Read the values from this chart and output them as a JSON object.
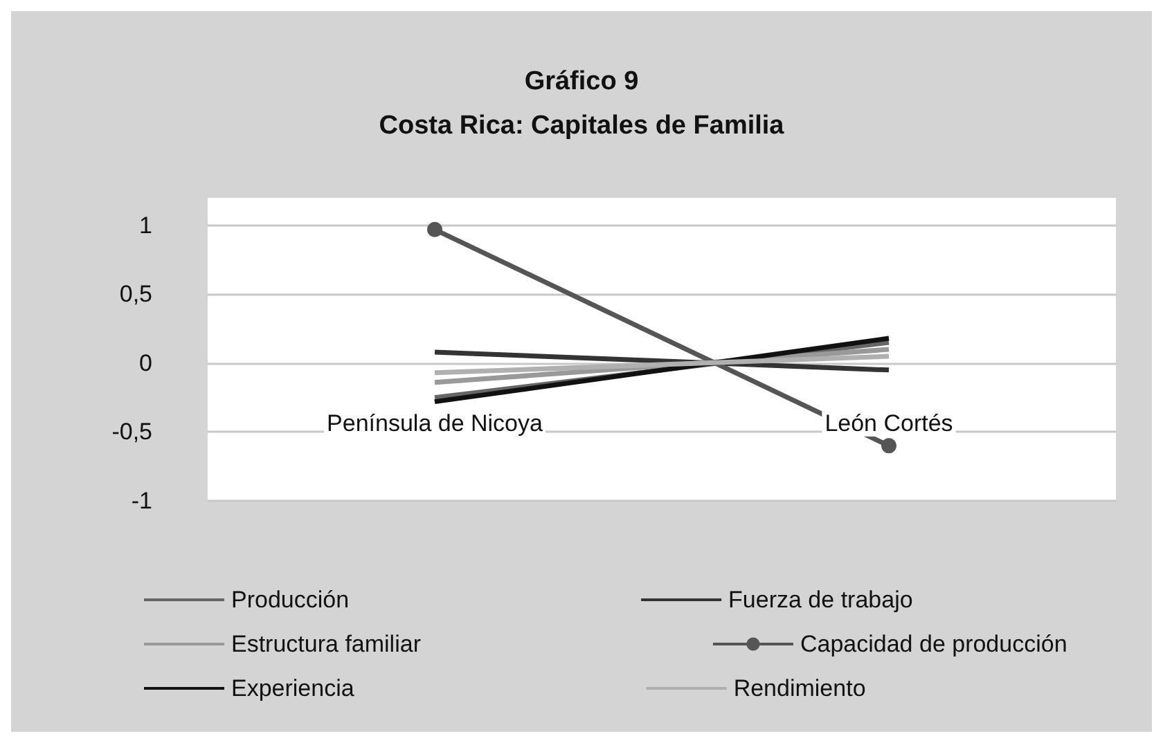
{
  "chart_data": {
    "type": "line",
    "title": "Gráfico 9\nCosta Rica: Capitales de Familia",
    "categories": [
      "Península de Nicoya",
      "León Cortés"
    ],
    "series": [
      {
        "name": "Producción",
        "color": "#666666",
        "values": [
          -0.25,
          0.15
        ]
      },
      {
        "name": "Fuerza de trabajo",
        "color": "#333333",
        "values": [
          0.08,
          -0.05
        ]
      },
      {
        "name": "Estructura familiar",
        "color": "#999999",
        "values": [
          -0.14,
          0.1
        ]
      },
      {
        "name": "Capacidad de producción",
        "color": "#555555",
        "values": [
          0.97,
          -0.6
        ],
        "marker": "circle"
      },
      {
        "name": "Experiencia",
        "color": "#111111",
        "values": [
          -0.28,
          0.18
        ]
      },
      {
        "name": "Rendimiento",
        "color": "#b0b0b0",
        "values": [
          -0.07,
          0.05
        ]
      }
    ],
    "ylim": [
      -1,
      1.2
    ],
    "yticks": [
      -1,
      {
        "value": -0.5,
        "label": "-0,5"
      },
      0,
      {
        "value": 0.5,
        "label": "0,5"
      },
      1
    ],
    "grid": "y",
    "legend": "bottom",
    "marker": "none"
  }
}
